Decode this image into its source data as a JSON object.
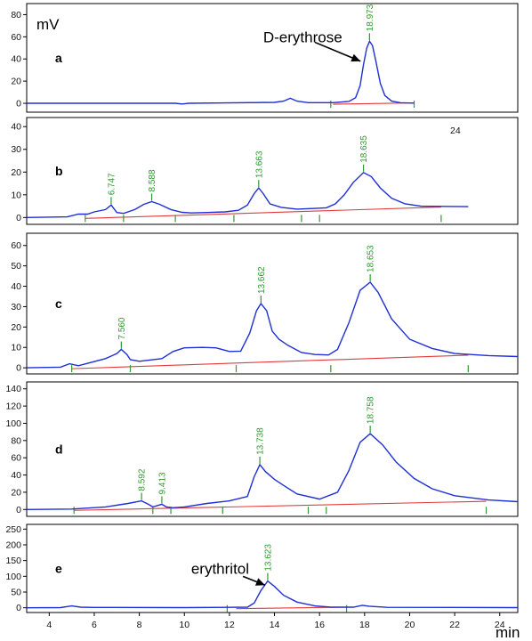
{
  "chart_data": {
    "type": "line",
    "units": {
      "y": "mV",
      "x": "min"
    },
    "xlim": [
      3,
      24.8
    ],
    "x_ticks": [
      4,
      6,
      8,
      10,
      12,
      14,
      16,
      18,
      20,
      22,
      24
    ],
    "extra_text": "24",
    "panels": [
      {
        "label": "a",
        "ylim": [
          -8,
          90
        ],
        "y_ticks": [
          0,
          20,
          40,
          60,
          80
        ],
        "baseline_range": [
          16.6,
          20.2
        ],
        "integration_marks": [
          16.5,
          20.2
        ],
        "trace": [
          [
            3,
            0
          ],
          [
            9.6,
            0
          ],
          [
            9.9,
            -0.6
          ],
          [
            10.2,
            0
          ],
          [
            14.0,
            0.8
          ],
          [
            14.4,
            2
          ],
          [
            14.7,
            4.5
          ],
          [
            15.0,
            2
          ],
          [
            15.5,
            0.6
          ],
          [
            16.6,
            0.6
          ],
          [
            17.3,
            1.6
          ],
          [
            17.6,
            5
          ],
          [
            17.8,
            16
          ],
          [
            17.95,
            35
          ],
          [
            18.1,
            50
          ],
          [
            18.22,
            56
          ],
          [
            18.35,
            52
          ],
          [
            18.5,
            38
          ],
          [
            18.7,
            18
          ],
          [
            18.9,
            7
          ],
          [
            19.2,
            2
          ],
          [
            19.6,
            0.5
          ],
          [
            20.2,
            0.2
          ]
        ],
        "peaks": [
          {
            "x": 18.22,
            "y": 56,
            "label": "18.973"
          }
        ],
        "annotations": [
          {
            "text": "D-erythrose",
            "x": 13.5,
            "y": 60
          }
        ],
        "arrows": [
          {
            "from": [
              15.8,
              55
            ],
            "to": [
              17.82,
              38
            ]
          }
        ]
      },
      {
        "label": "b",
        "ylim": [
          -3,
          44
        ],
        "y_ticks": [
          0,
          10,
          20,
          30,
          40
        ],
        "baseline_range": [
          5.6,
          21.4
        ],
        "integration_marks": [
          5.6,
          7.3,
          9.6,
          12.2,
          15.2,
          16.0,
          21.4
        ],
        "trace": [
          [
            3,
            0
          ],
          [
            4.8,
            0.3
          ],
          [
            5.3,
            1.5
          ],
          [
            5.7,
            1.5
          ],
          [
            6.0,
            2.5
          ],
          [
            6.5,
            3.5
          ],
          [
            6.75,
            5.5
          ],
          [
            7.0,
            2.2
          ],
          [
            7.3,
            1.8
          ],
          [
            7.8,
            3.5
          ],
          [
            8.2,
            5.8
          ],
          [
            8.55,
            7
          ],
          [
            8.9,
            5.8
          ],
          [
            9.4,
            3.5
          ],
          [
            9.9,
            2.3
          ],
          [
            10.3,
            2
          ],
          [
            11,
            2.2
          ],
          [
            11.8,
            2.5
          ],
          [
            12.4,
            3.2
          ],
          [
            12.8,
            5.5
          ],
          [
            13.1,
            10.5
          ],
          [
            13.3,
            13
          ],
          [
            13.5,
            10.5
          ],
          [
            13.8,
            6
          ],
          [
            14.3,
            4.5
          ],
          [
            15.0,
            3.7
          ],
          [
            15.8,
            4.0
          ],
          [
            16.3,
            4.3
          ],
          [
            16.7,
            6
          ],
          [
            17.1,
            10
          ],
          [
            17.5,
            15.5
          ],
          [
            17.95,
            19.8
          ],
          [
            18.3,
            18
          ],
          [
            18.7,
            13
          ],
          [
            19.2,
            8.5
          ],
          [
            19.8,
            6
          ],
          [
            20.5,
            5
          ],
          [
            22.6,
            4.8
          ]
        ],
        "peaks": [
          {
            "x": 6.75,
            "y": 5.5,
            "label": "6.747"
          },
          {
            "x": 8.55,
            "y": 7,
            "label": "8.588"
          },
          {
            "x": 13.3,
            "y": 13,
            "label": "13.663"
          },
          {
            "x": 17.95,
            "y": 19.8,
            "label": "18.635"
          }
        ],
        "annotations": [],
        "arrows": []
      },
      {
        "label": "c",
        "ylim": [
          -3,
          66
        ],
        "y_ticks": [
          0,
          10,
          20,
          30,
          40,
          50,
          60
        ],
        "baseline_range": [
          5.0,
          22.6
        ],
        "integration_marks": [
          5.0,
          7.6,
          12.3,
          16.5,
          22.6
        ],
        "trace": [
          [
            3,
            0
          ],
          [
            4.5,
            0.3
          ],
          [
            4.9,
            2
          ],
          [
            5.3,
            1
          ],
          [
            5.8,
            2.5
          ],
          [
            6.5,
            4.5
          ],
          [
            7.0,
            7
          ],
          [
            7.2,
            9
          ],
          [
            7.45,
            6.5
          ],
          [
            7.6,
            4
          ],
          [
            8,
            3.2
          ],
          [
            9,
            4.5
          ],
          [
            9.5,
            8
          ],
          [
            10.0,
            9.8
          ],
          [
            10.8,
            10
          ],
          [
            11.4,
            9.8
          ],
          [
            12.0,
            8
          ],
          [
            12.5,
            8.2
          ],
          [
            12.9,
            17
          ],
          [
            13.2,
            28
          ],
          [
            13.4,
            31.5
          ],
          [
            13.65,
            28
          ],
          [
            13.9,
            18
          ],
          [
            14.2,
            14
          ],
          [
            14.6,
            11
          ],
          [
            15.2,
            7.5
          ],
          [
            15.8,
            6.5
          ],
          [
            16.4,
            6.3
          ],
          [
            16.8,
            9
          ],
          [
            17.3,
            22
          ],
          [
            17.8,
            38
          ],
          [
            18.25,
            42
          ],
          [
            18.6,
            37
          ],
          [
            19.2,
            24
          ],
          [
            20,
            14
          ],
          [
            21,
            9.5
          ],
          [
            22,
            7
          ],
          [
            23.5,
            6
          ],
          [
            24.8,
            5.5
          ]
        ],
        "peaks": [
          {
            "x": 7.2,
            "y": 9,
            "label": "7.560"
          },
          {
            "x": 13.4,
            "y": 31.5,
            "label": "13.662"
          },
          {
            "x": 18.25,
            "y": 42,
            "label": "18.653"
          }
        ],
        "annotations": [],
        "arrows": []
      },
      {
        "label": "d",
        "ylim": [
          -8,
          148
        ],
        "y_ticks": [
          0,
          20,
          40,
          60,
          80,
          100,
          120,
          140
        ],
        "baseline_range": [
          5.1,
          23.4
        ],
        "integration_marks": [
          5.1,
          8.6,
          9.4,
          11.7,
          15.5,
          16.3,
          23.4
        ],
        "trace": [
          [
            3,
            0
          ],
          [
            5,
            0.5
          ],
          [
            6.5,
            3
          ],
          [
            7.5,
            7
          ],
          [
            8.1,
            10
          ],
          [
            8.4,
            6
          ],
          [
            8.6,
            3
          ],
          [
            9.0,
            6
          ],
          [
            9.2,
            3
          ],
          [
            9.5,
            2
          ],
          [
            10,
            3
          ],
          [
            11,
            7
          ],
          [
            12,
            10
          ],
          [
            12.8,
            15
          ],
          [
            13.1,
            38
          ],
          [
            13.35,
            52
          ],
          [
            13.6,
            44
          ],
          [
            14.0,
            35
          ],
          [
            14.4,
            28
          ],
          [
            15,
            18
          ],
          [
            16.0,
            12
          ],
          [
            16.8,
            20
          ],
          [
            17.3,
            45
          ],
          [
            17.8,
            78
          ],
          [
            18.25,
            88
          ],
          [
            18.8,
            75
          ],
          [
            19.4,
            55
          ],
          [
            20.2,
            36
          ],
          [
            21,
            24
          ],
          [
            22,
            16
          ],
          [
            23.5,
            11
          ],
          [
            24.8,
            9
          ]
        ],
        "peaks": [
          {
            "x": 8.1,
            "y": 10,
            "label": "8.592"
          },
          {
            "x": 9.0,
            "y": 6,
            "label": "9.413"
          },
          {
            "x": 13.35,
            "y": 52,
            "label": "13.738"
          },
          {
            "x": 18.25,
            "y": 88,
            "label": "18.758"
          }
        ],
        "annotations": [],
        "arrows": []
      },
      {
        "label": "e",
        "ylim": [
          -15,
          265
        ],
        "y_ticks": [
          0,
          50,
          100,
          150,
          200,
          250
        ],
        "baseline_range": [
          12.3,
          17.2
        ],
        "integration_marks": [
          11.9,
          17.2
        ],
        "trace": [
          [
            3,
            0
          ],
          [
            4.5,
            0.5
          ],
          [
            5.0,
            6
          ],
          [
            5.4,
            2
          ],
          [
            6,
            1
          ],
          [
            10,
            0.5
          ],
          [
            12.8,
            2
          ],
          [
            13.1,
            15
          ],
          [
            13.4,
            55
          ],
          [
            13.7,
            85
          ],
          [
            14.0,
            68
          ],
          [
            14.4,
            40
          ],
          [
            15,
            18
          ],
          [
            15.8,
            6
          ],
          [
            16.5,
            2
          ],
          [
            17.5,
            2
          ],
          [
            17.9,
            8
          ],
          [
            18.2,
            5
          ],
          [
            19,
            1.5
          ],
          [
            24.8,
            0.5
          ]
        ],
        "peaks": [
          {
            "x": 13.7,
            "y": 85,
            "label": "13.623"
          }
        ],
        "annotations": [
          {
            "text": "erythritol",
            "x": 10.3,
            "y": 125
          }
        ],
        "arrows": [
          {
            "from": [
              12.6,
              100
            ],
            "to": [
              13.58,
              72
            ]
          }
        ]
      }
    ]
  }
}
